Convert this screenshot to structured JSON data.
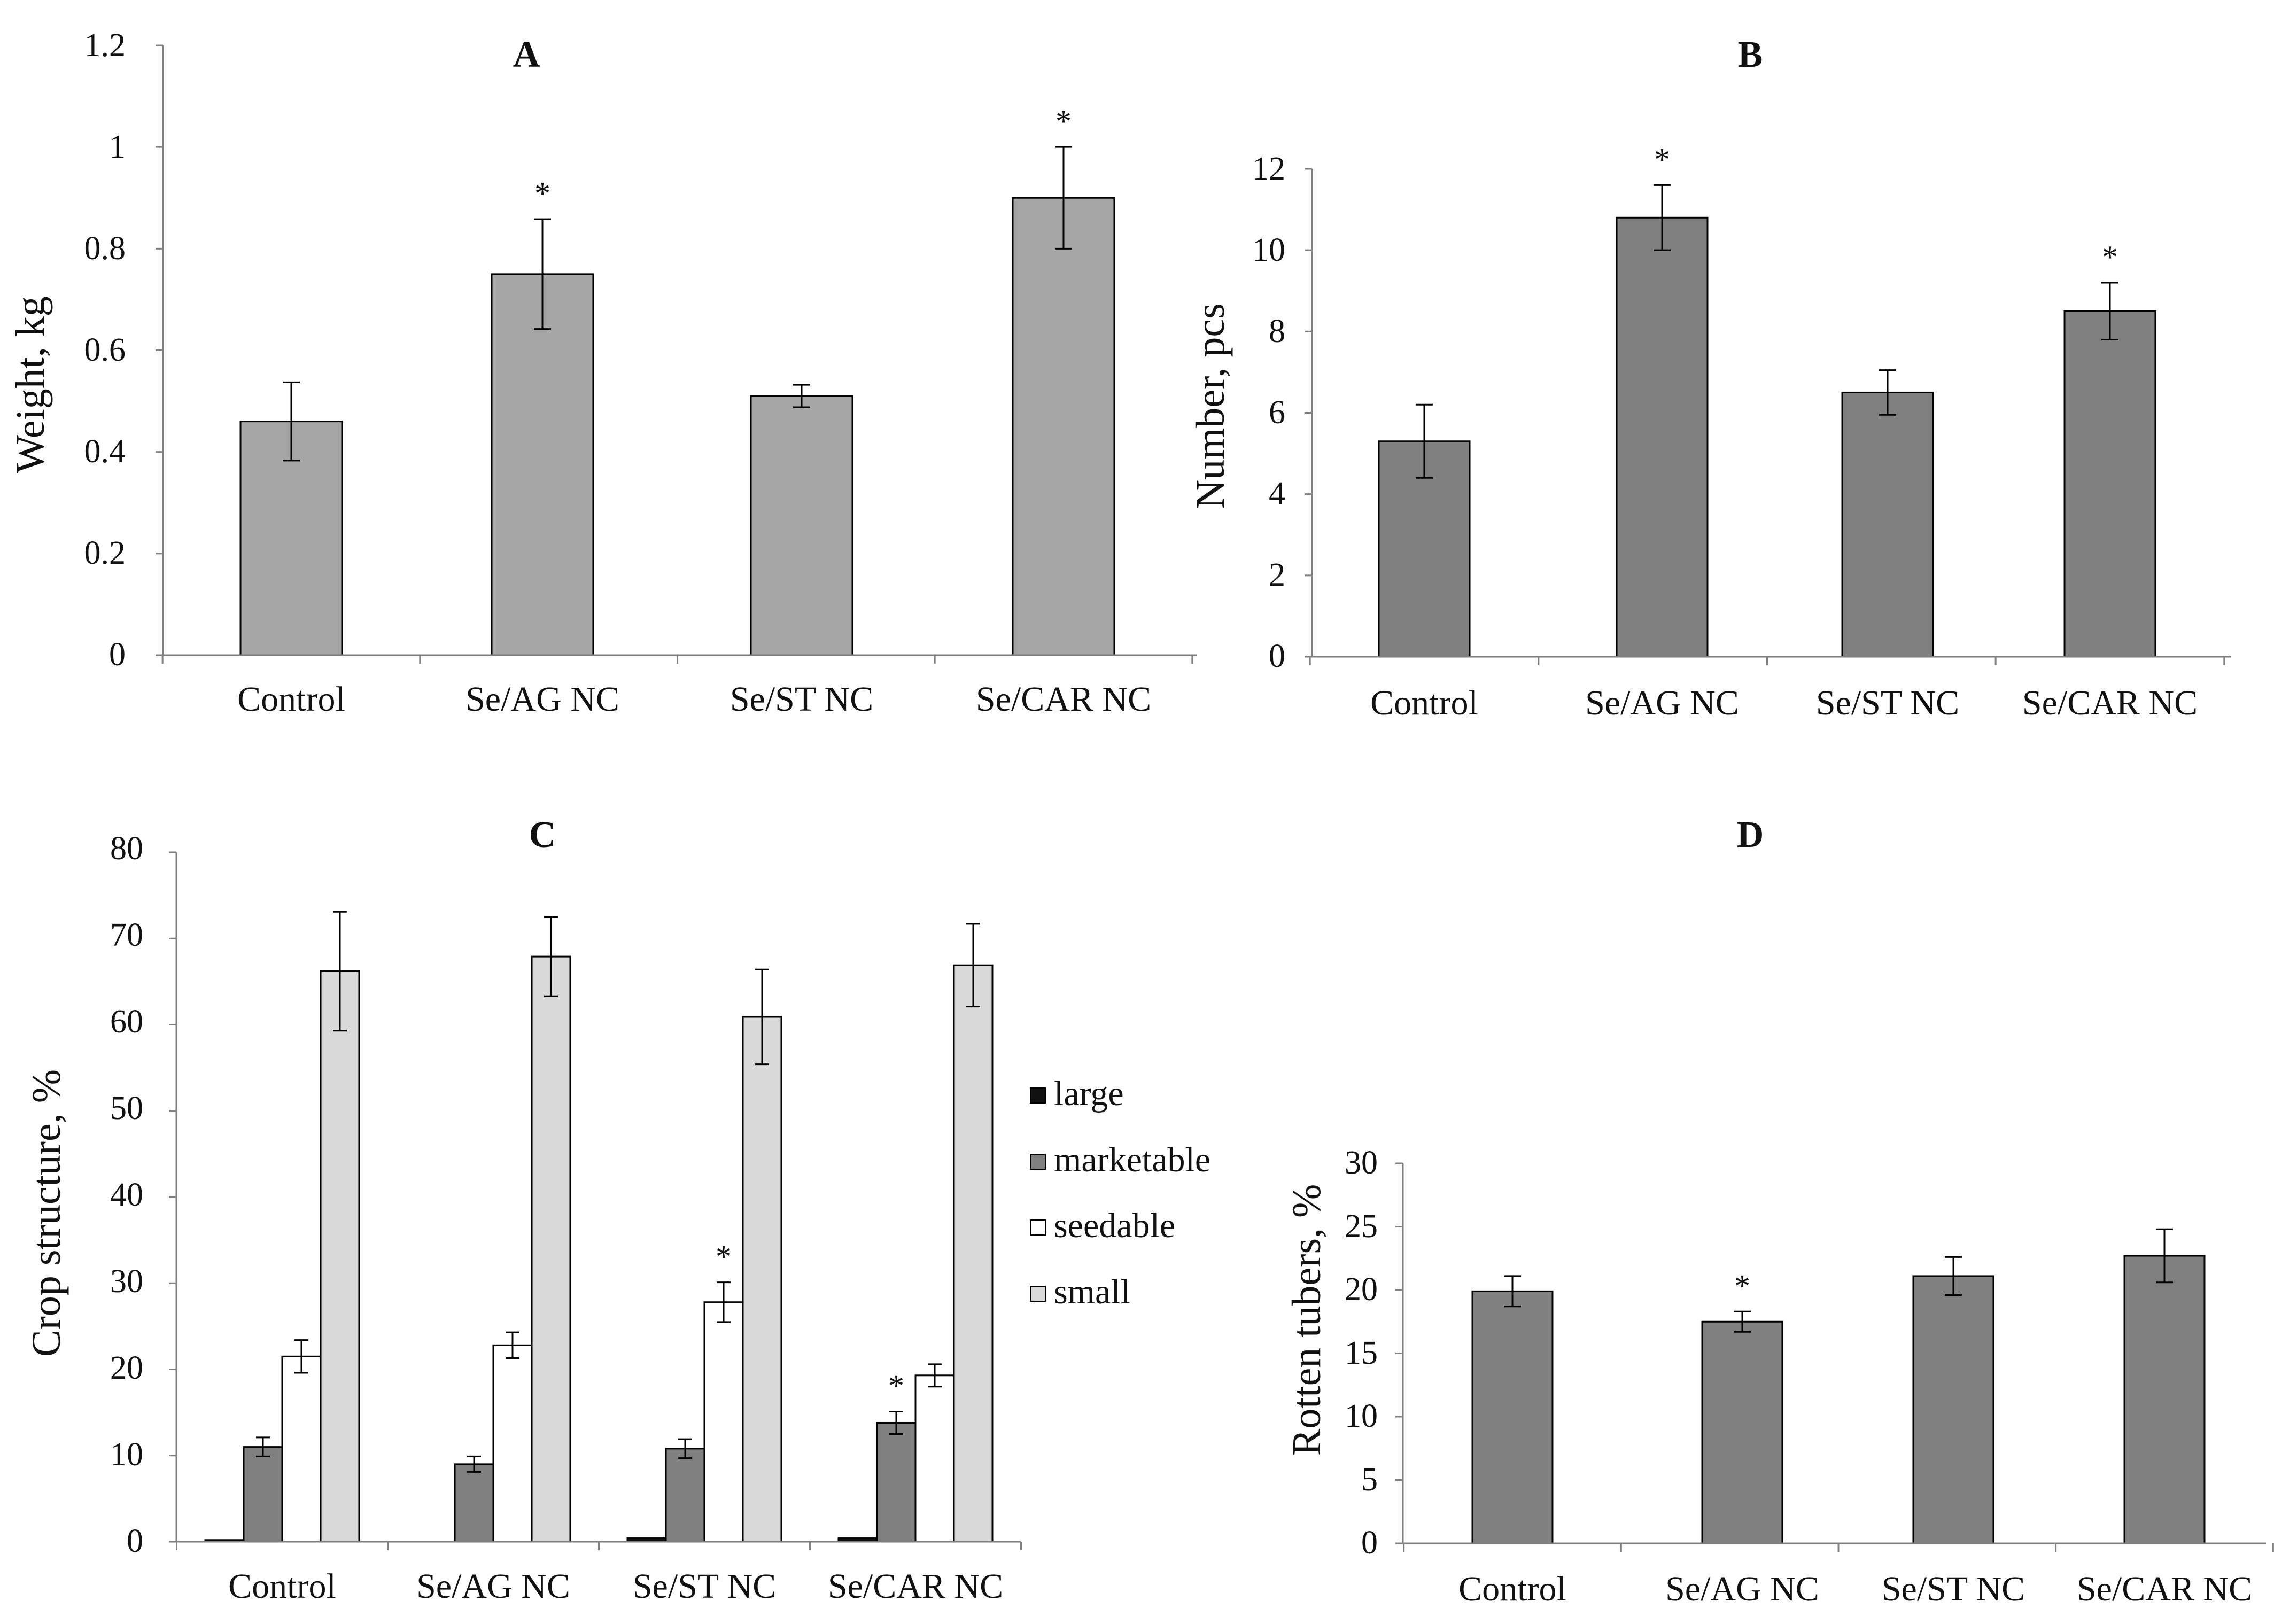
{
  "chart_data": [
    {
      "type": "bar",
      "title": "A",
      "xlabel": "",
      "ylabel": "Weight, kg",
      "categories": [
        "Control",
        "Se/AG NC",
        "Se/ST NC",
        "Se/CAR NC"
      ],
      "ylim": [
        0,
        1.2
      ],
      "yticks": [
        "0",
        "0.2",
        "0.4",
        "0.6",
        "0.8",
        "1",
        "1.2"
      ],
      "grid": false,
      "series": [
        {
          "name": "Weight",
          "color": "#a6a6a6",
          "values": [
            0.46,
            0.75,
            0.51,
            0.9
          ],
          "errors": [
            0.077,
            0.108,
            0.022,
            0.1
          ],
          "significance": [
            "",
            "*",
            "",
            "*"
          ]
        }
      ]
    },
    {
      "type": "bar",
      "title": "B",
      "xlabel": "",
      "ylabel": "Number, pcs",
      "categories": [
        "Control",
        "Se/AG NC",
        "Se/ST NC",
        "Se/CAR NC"
      ],
      "ylim": [
        0,
        12
      ],
      "yticks": [
        "0",
        "2",
        "4",
        "6",
        "8",
        "10",
        "12"
      ],
      "grid": false,
      "series": [
        {
          "name": "Number",
          "color": "#808080",
          "values": [
            5.3,
            10.8,
            6.5,
            8.5
          ],
          "errors": [
            0.9,
            0.8,
            0.55,
            0.7
          ],
          "significance": [
            "",
            "*",
            "",
            "*"
          ]
        }
      ]
    },
    {
      "type": "bar",
      "title": "C",
      "xlabel": "",
      "ylabel": "Crop structure, %",
      "categories": [
        "Control",
        "Se/AG NC",
        "Se/ST NC",
        "Se/CAR NC"
      ],
      "ylim": [
        0,
        80
      ],
      "yticks": [
        "0",
        "10",
        "20",
        "30",
        "40",
        "50",
        "60",
        "70",
        "80"
      ],
      "grid": false,
      "legend": "right",
      "series": [
        {
          "name": "large",
          "color": "#111111",
          "values": [
            0.2,
            0,
            0.4,
            0.4
          ],
          "errors": [
            0,
            0,
            0,
            0
          ],
          "significance": [
            "",
            "",
            "",
            ""
          ]
        },
        {
          "name": "marketable",
          "color": "#808080",
          "values": [
            11,
            9,
            10.8,
            13.8
          ],
          "errors": [
            1.1,
            0.9,
            1.1,
            1.3
          ],
          "significance": [
            "",
            "",
            "",
            "*"
          ]
        },
        {
          "name": "seedable",
          "color": "#ffffff",
          "values": [
            21.5,
            22.8,
            27.8,
            19.3
          ],
          "errors": [
            1.9,
            1.5,
            2.3,
            1.3
          ],
          "significance": [
            "",
            "",
            "*",
            ""
          ]
        },
        {
          "name": "small",
          "color": "#d9d9d9",
          "values": [
            66.2,
            67.9,
            60.9,
            66.9
          ],
          "errors": [
            6.9,
            4.6,
            5.5,
            4.8
          ],
          "significance": [
            "",
            "",
            "",
            ""
          ]
        }
      ]
    },
    {
      "type": "bar",
      "title": "D",
      "xlabel": "",
      "ylabel": "Rotten tubers, %",
      "categories": [
        "Control",
        "Se/AG NC",
        "Se/ST NC",
        "Se/CAR NC"
      ],
      "ylim": [
        0,
        30
      ],
      "yticks": [
        "0",
        "5",
        "10",
        "15",
        "20",
        "25",
        "30"
      ],
      "grid": false,
      "series": [
        {
          "name": "Rotten tubers",
          "color": "#808080",
          "values": [
            19.9,
            17.5,
            21.1,
            22.7
          ],
          "errors": [
            1.2,
            0.8,
            1.5,
            2.1
          ],
          "significance": [
            "",
            "*",
            "",
            ""
          ]
        }
      ]
    }
  ]
}
